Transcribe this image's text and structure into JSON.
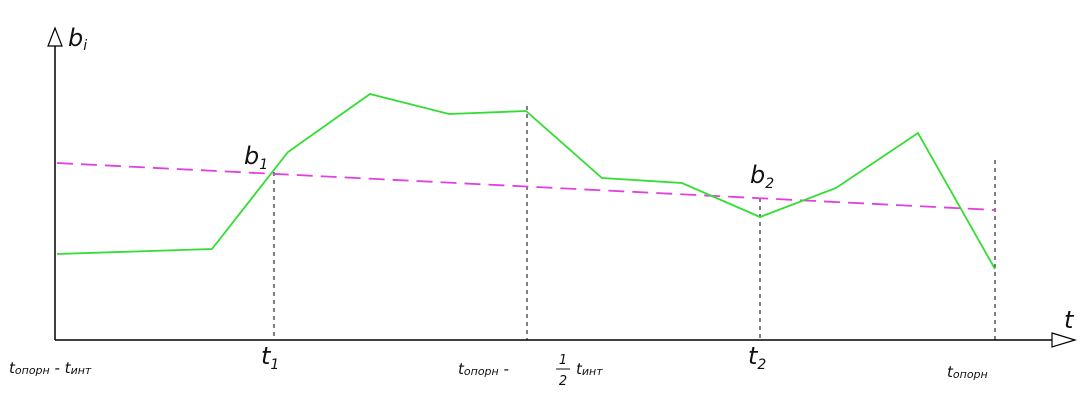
{
  "axes": {
    "y_label": "b",
    "y_label_sub": "i",
    "x_label": "t"
  },
  "points": {
    "b1": {
      "main": "b",
      "sub": "1"
    },
    "b2": {
      "main": "b",
      "sub": "2"
    }
  },
  "ticks": {
    "start": {
      "a": "t",
      "a_sub": "опорн",
      "sep": " - ",
      "b": "t",
      "b_sub": "инт"
    },
    "t1": {
      "main": "t",
      "sub": "1"
    },
    "mid": {
      "a": "t",
      "a_sub": "опорн",
      "sep": " - ",
      "num": "1",
      "den": "2",
      "b": "t",
      "b_sub": "инт"
    },
    "t2": {
      "main": "t",
      "sub": "2"
    },
    "end": {
      "a": "t",
      "a_sub": "опорн"
    }
  },
  "colors": {
    "signal": "#33dd33",
    "trend": "#e040e0",
    "axis": "#000000",
    "guide": "#000000"
  }
}
